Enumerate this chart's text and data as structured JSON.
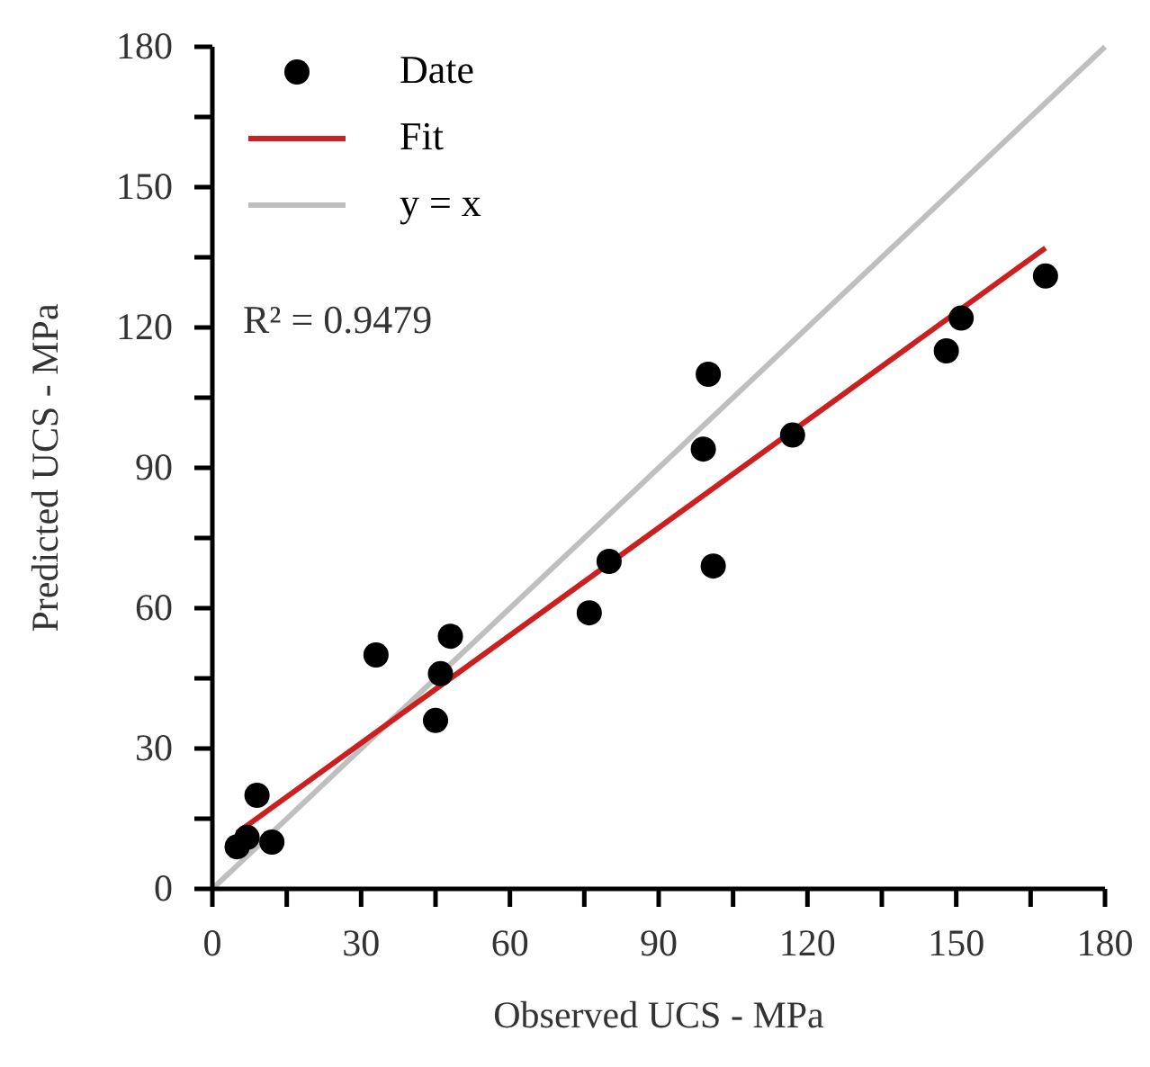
{
  "chart_data": {
    "type": "scatter",
    "xlabel": "Observed UCS  - MPa",
    "ylabel": "Predicted UCS  - MPa",
    "xlim": [
      0,
      180
    ],
    "ylim": [
      0,
      180
    ],
    "xticks": [
      0,
      {
        "value": 15,
        "label": null
      },
      30,
      {
        "value": 45,
        "label": null
      },
      60,
      {
        "value": 75,
        "label": null
      },
      90,
      {
        "value": 105,
        "label": null
      },
      120,
      {
        "value": 135,
        "label": null
      },
      150,
      {
        "value": 165,
        "label": null
      },
      180
    ],
    "yticks": [
      0,
      {
        "value": 15,
        "label": null
      },
      30,
      {
        "value": 45,
        "label": null
      },
      60,
      {
        "value": 75,
        "label": null
      },
      90,
      {
        "value": 105,
        "label": null
      },
      120,
      {
        "value": 135,
        "label": null
      },
      150,
      {
        "value": 165,
        "label": null
      },
      180
    ],
    "grid": false,
    "legend": "top left",
    "annotations": [
      "R² = 0.9479"
    ],
    "series": [
      {
        "name": "Date",
        "marker": "circle",
        "color": "#000000",
        "x": [
          5,
          7,
          9,
          12,
          33,
          45,
          46,
          48,
          76,
          80,
          99,
          100,
          101,
          117,
          148,
          151,
          168
        ],
        "values": [
          9,
          11,
          20,
          10,
          50,
          36,
          46,
          54,
          59,
          70,
          94,
          110,
          69,
          97,
          115,
          122,
          131
        ]
      },
      {
        "name": "Fit",
        "type": "line",
        "marker": "none",
        "color": "#cc1f1f",
        "x": [
          5,
          168
        ],
        "values": [
          12,
          137
        ]
      },
      {
        "name": "y = x",
        "type": "line",
        "marker": "none",
        "color": "#bfbfbf",
        "x": [
          0,
          180
        ],
        "values": [
          0,
          180
        ]
      }
    ]
  }
}
